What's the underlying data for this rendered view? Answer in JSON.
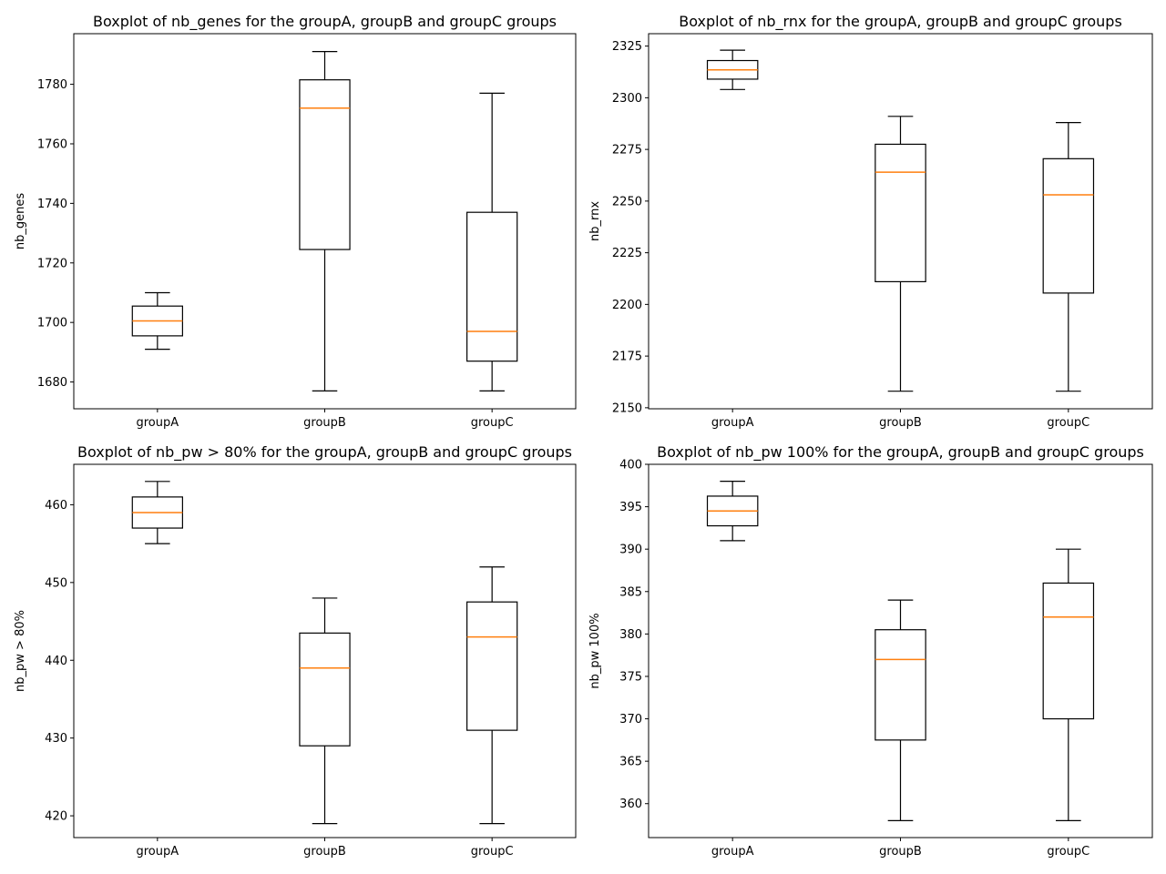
{
  "chart_data": [
    {
      "type": "boxplot",
      "title": "Boxplot of nb_genes for the groupA, groupB and groupC groups",
      "xlabel": "",
      "ylabel": "nb_genes",
      "categories": [
        "groupA",
        "groupB",
        "groupC"
      ],
      "ylim": [
        1671,
        1797
      ],
      "yticks": [
        1680,
        1700,
        1720,
        1740,
        1760,
        1780
      ],
      "boxes": [
        {
          "name": "groupA",
          "whislo": 1691,
          "q1": 1695.5,
          "med": 1700.5,
          "q3": 1705.5,
          "whishi": 1710
        },
        {
          "name": "groupB",
          "whislo": 1677,
          "q1": 1724.5,
          "med": 1772,
          "q3": 1781.5,
          "whishi": 1791
        },
        {
          "name": "groupC",
          "whislo": 1677,
          "q1": 1687,
          "med": 1697,
          "q3": 1737,
          "whishi": 1777
        }
      ],
      "colors": {
        "box": "#000000",
        "median": "#ff7f0e"
      }
    },
    {
      "type": "boxplot",
      "title": "Boxplot of nb_rnx for the groupA, groupB and groupC groups",
      "xlabel": "",
      "ylabel": "nb_rnx",
      "categories": [
        "groupA",
        "groupB",
        "groupC"
      ],
      "ylim": [
        2149.5,
        2331
      ],
      "yticks": [
        2150,
        2175,
        2200,
        2225,
        2250,
        2275,
        2300,
        2325
      ],
      "boxes": [
        {
          "name": "groupA",
          "whislo": 2304,
          "q1": 2309,
          "med": 2313.5,
          "q3": 2318,
          "whishi": 2323
        },
        {
          "name": "groupB",
          "whislo": 2158,
          "q1": 2211,
          "med": 2264,
          "q3": 2277.5,
          "whishi": 2291
        },
        {
          "name": "groupC",
          "whislo": 2158,
          "q1": 2205.5,
          "med": 2253,
          "q3": 2270.5,
          "whishi": 2288
        }
      ],
      "colors": {
        "box": "#000000",
        "median": "#ff7f0e"
      }
    },
    {
      "type": "boxplot",
      "title": "Boxplot of nb_pw > 80% for the groupA, groupB and groupC groups",
      "xlabel": "",
      "ylabel": "nb_pw > 80%",
      "categories": [
        "groupA",
        "groupB",
        "groupC"
      ],
      "ylim": [
        417.2,
        465.2
      ],
      "yticks": [
        420,
        430,
        440,
        450,
        460
      ],
      "boxes": [
        {
          "name": "groupA",
          "whislo": 455,
          "q1": 457,
          "med": 459,
          "q3": 461,
          "whishi": 463
        },
        {
          "name": "groupB",
          "whislo": 419,
          "q1": 429,
          "med": 439,
          "q3": 443.5,
          "whishi": 448
        },
        {
          "name": "groupC",
          "whislo": 419,
          "q1": 431,
          "med": 443,
          "q3": 447.5,
          "whishi": 452
        }
      ],
      "colors": {
        "box": "#000000",
        "median": "#ff7f0e"
      }
    },
    {
      "type": "boxplot",
      "title": "Boxplot of nb_pw 100% for the groupA, groupB and groupC groups",
      "xlabel": "",
      "ylabel": "nb_pw 100%",
      "categories": [
        "groupA",
        "groupB",
        "groupC"
      ],
      "ylim": [
        356,
        400
      ],
      "yticks": [
        360,
        365,
        370,
        375,
        380,
        385,
        390,
        395,
        400
      ],
      "boxes": [
        {
          "name": "groupA",
          "whislo": 391,
          "q1": 392.75,
          "med": 394.5,
          "q3": 396.25,
          "whishi": 398
        },
        {
          "name": "groupB",
          "whislo": 358,
          "q1": 367.5,
          "med": 377,
          "q3": 380.5,
          "whishi": 384
        },
        {
          "name": "groupC",
          "whislo": 358,
          "q1": 370,
          "med": 382,
          "q3": 386,
          "whishi": 390
        }
      ],
      "colors": {
        "box": "#000000",
        "median": "#ff7f0e"
      }
    }
  ]
}
